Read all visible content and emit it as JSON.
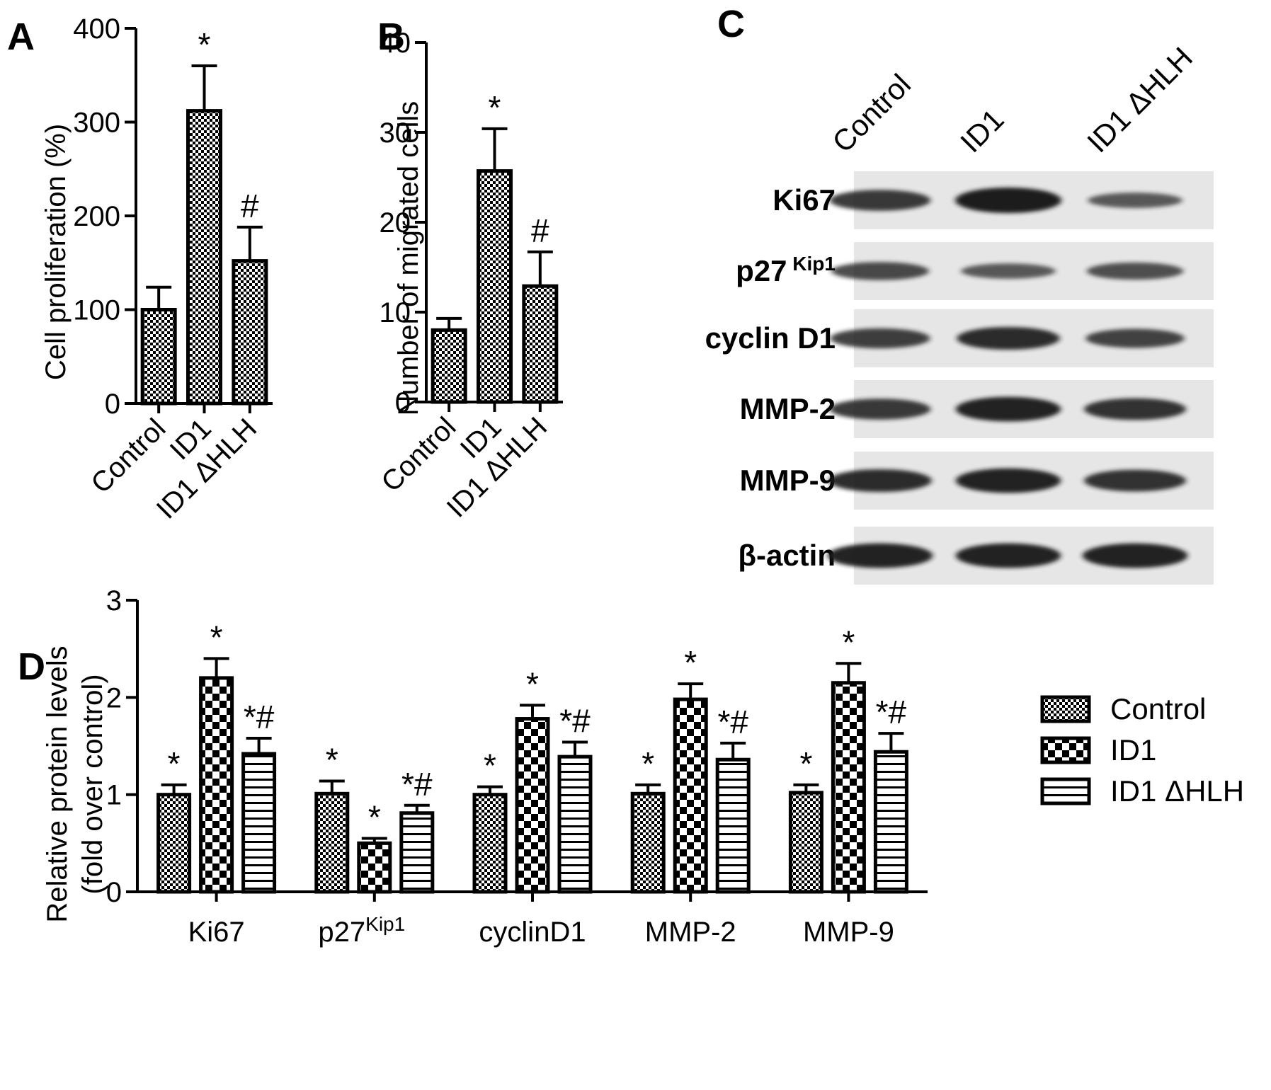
{
  "panel_letters": {
    "a": "A",
    "b": "B",
    "c": "C",
    "d": "D"
  },
  "colors": {
    "ink": "#000000",
    "blot_bg": "#e6e6e6",
    "band": "#1a1a1a"
  },
  "chart_data": [
    {
      "id": "A",
      "type": "bar",
      "ylabel": "Cell proliferation (%)",
      "categories": [
        "Control",
        "ID1",
        "ID1  ΔHLH"
      ],
      "values": [
        100,
        312,
        152
      ],
      "errors": [
        24,
        48,
        36
      ],
      "annotations": [
        "",
        "*",
        "#"
      ],
      "patterns": [
        "fine-check",
        "fine-check",
        "fine-check"
      ],
      "ylim": [
        0,
        400
      ],
      "yticks": [
        "0",
        "100",
        "200",
        "300",
        "400"
      ]
    },
    {
      "id": "B",
      "type": "bar",
      "ylabel": "Number of migrated cells",
      "categories": [
        "Control",
        "ID1",
        "ID1  ΔHLH"
      ],
      "values": [
        8,
        25.7,
        12.9
      ],
      "errors": [
        1.3,
        4.7,
        3.8
      ],
      "annotations": [
        "",
        "*",
        "#"
      ],
      "patterns": [
        "fine-check",
        "fine-check",
        "fine-check"
      ],
      "ylim": [
        0,
        40
      ],
      "yticks": [
        "0",
        "10",
        "20",
        "30",
        "40"
      ]
    },
    {
      "id": "D",
      "type": "bar",
      "ylabel_line1": "Relative protein levels",
      "ylabel_line2": "(fold over control)",
      "categories": [
        "Ki67",
        "p27",
        "cyclinD1",
        "MMP-2",
        "MMP-9"
      ],
      "category_superscripts": [
        "",
        "Kip1",
        "",
        "",
        ""
      ],
      "ylim": [
        0,
        3
      ],
      "yticks": [
        "0",
        "1",
        "2",
        "3"
      ],
      "series": [
        {
          "name": "Control",
          "pattern": "fine-check",
          "values": [
            1.0,
            1.01,
            1.0,
            1.01,
            1.02
          ],
          "errors": [
            0.1,
            0.13,
            0.08,
            0.09,
            0.08
          ],
          "annotations": [
            "*",
            "*",
            "*",
            "*",
            "*"
          ]
        },
        {
          "name": "ID1",
          "pattern": "coarse-check",
          "values": [
            2.2,
            0.5,
            1.78,
            1.98,
            2.15
          ],
          "errors": [
            0.2,
            0.05,
            0.14,
            0.16,
            0.2
          ],
          "annotations": [
            "*",
            "*",
            "*",
            "*",
            "*"
          ]
        },
        {
          "name": "ID1  ΔHLH",
          "pattern": "stripes",
          "values": [
            1.42,
            0.81,
            1.39,
            1.36,
            1.44
          ],
          "errors": [
            0.16,
            0.08,
            0.15,
            0.17,
            0.19
          ],
          "annotations": [
            "*#",
            "*#",
            "*#",
            "*#",
            "*#"
          ]
        }
      ]
    }
  ],
  "western_blot": {
    "lanes": [
      "Control",
      "ID1",
      "ID1  ΔHLH"
    ],
    "rows": [
      {
        "label": "Ki67",
        "sup": "",
        "intensity": [
          0.75,
          1.0,
          0.45
        ]
      },
      {
        "label": "p27",
        "sup": "Kip1",
        "intensity": [
          0.6,
          0.45,
          0.55
        ]
      },
      {
        "label": "cyclin D1",
        "sup": "",
        "intensity": [
          0.7,
          0.85,
          0.65
        ]
      },
      {
        "label": "MMP-2",
        "sup": "",
        "intensity": [
          0.75,
          0.95,
          0.8
        ]
      },
      {
        "label": "MMP-9",
        "sup": "",
        "intensity": [
          0.85,
          0.95,
          0.8
        ]
      },
      {
        "label": "β-actin",
        "sup": "",
        "intensity": [
          0.95,
          0.95,
          0.95
        ]
      }
    ]
  }
}
